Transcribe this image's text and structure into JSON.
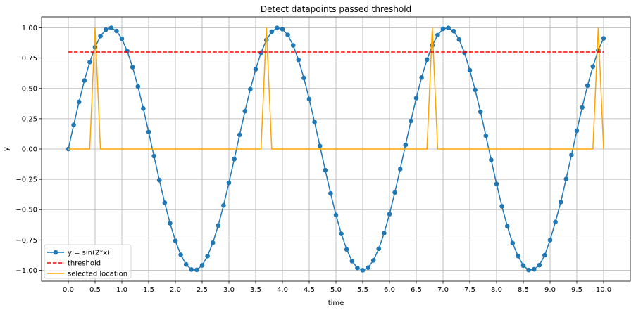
{
  "chart_data": {
    "type": "line",
    "title": "Detect datapoints passed threshold",
    "xlabel": "time",
    "ylabel": "y",
    "xlim": [
      -0.5,
      10.5
    ],
    "ylim": [
      -1.09,
      1.09
    ],
    "grid": true,
    "legend_position": "bottom-left",
    "x_ticks": [
      0.0,
      0.5,
      1.0,
      1.5,
      2.0,
      2.5,
      3.0,
      3.5,
      4.0,
      4.5,
      5.0,
      5.5,
      6.0,
      6.5,
      7.0,
      7.5,
      8.0,
      8.5,
      9.0,
      9.5,
      10.0
    ],
    "x_tick_labels": [
      "0.0",
      "0.5",
      "1.0",
      "1.5",
      "2.0",
      "2.5",
      "3.0",
      "3.5",
      "4.0",
      "4.5",
      "5.0",
      "5.5",
      "6.0",
      "6.5",
      "7.0",
      "7.5",
      "8.0",
      "8.5",
      "9.0",
      "9.5",
      "10.0"
    ],
    "y_ticks": [
      -1.0,
      -0.75,
      -0.5,
      -0.25,
      0.0,
      0.25,
      0.5,
      0.75,
      1.0
    ],
    "y_tick_labels": [
      "−1.00",
      "−0.75",
      "−0.50",
      "−0.25",
      "0.00",
      "0.25",
      "0.50",
      "0.75",
      "1.00"
    ],
    "series": [
      {
        "name": "y = sin(2*x)",
        "style": "line-marker",
        "color": "#1f77b4",
        "x": [
          0.0,
          0.1,
          0.2,
          0.3,
          0.4,
          0.5,
          0.6,
          0.7,
          0.8,
          0.9,
          1.0,
          1.1,
          1.2,
          1.3,
          1.4,
          1.5,
          1.6,
          1.7,
          1.8,
          1.9,
          2.0,
          2.1,
          2.2,
          2.3,
          2.4,
          2.5,
          2.6,
          2.7,
          2.8,
          2.9,
          3.0,
          3.1,
          3.2,
          3.3,
          3.4,
          3.5,
          3.6,
          3.7,
          3.8,
          3.9,
          4.0,
          4.1,
          4.2,
          4.3,
          4.4,
          4.5,
          4.6,
          4.7,
          4.8,
          4.9,
          5.0,
          5.1,
          5.2,
          5.3,
          5.4,
          5.5,
          5.6,
          5.7,
          5.8,
          5.9,
          6.0,
          6.1,
          6.2,
          6.3,
          6.4,
          6.5,
          6.6,
          6.7,
          6.8,
          6.9,
          7.0,
          7.1,
          7.2,
          7.3,
          7.4,
          7.5,
          7.6,
          7.7,
          7.8,
          7.9,
          8.0,
          8.1,
          8.2,
          8.3,
          8.4,
          8.5,
          8.6,
          8.7,
          8.8,
          8.9,
          9.0,
          9.1,
          9.2,
          9.3,
          9.4,
          9.5,
          9.6,
          9.7,
          9.8,
          9.9,
          10.0
        ],
        "y": [
          0.0,
          0.199,
          0.389,
          0.565,
          0.717,
          0.841,
          0.932,
          0.985,
          1.0,
          0.974,
          0.909,
          0.808,
          0.675,
          0.516,
          0.335,
          0.141,
          -0.058,
          -0.256,
          -0.443,
          -0.612,
          -0.757,
          -0.872,
          -0.952,
          -0.994,
          -0.996,
          -0.959,
          -0.883,
          -0.773,
          -0.631,
          -0.465,
          -0.279,
          -0.083,
          0.117,
          0.312,
          0.494,
          0.657,
          0.794,
          0.899,
          0.968,
          0.999,
          0.989,
          0.941,
          0.855,
          0.735,
          0.586,
          0.412,
          0.223,
          0.025,
          -0.174,
          -0.366,
          -0.544,
          -0.699,
          -0.828,
          -0.924,
          -0.981,
          -1.0,
          -0.978,
          -0.918,
          -0.822,
          -0.694,
          -0.537,
          -0.358,
          -0.165,
          0.034,
          0.232,
          0.42,
          0.59,
          0.737,
          0.855,
          0.94,
          0.991,
          0.999,
          0.973,
          0.903,
          0.795,
          0.65,
          0.488,
          0.307,
          0.109,
          -0.09,
          -0.288,
          -0.472,
          -0.636,
          -0.776,
          -0.882,
          -0.961,
          -0.998,
          -0.992,
          -0.958,
          -0.876,
          -0.751,
          -0.601,
          -0.437,
          -0.247,
          -0.049,
          0.151,
          0.343,
          0.523,
          0.68,
          0.814,
          0.913
        ]
      },
      {
        "name": "threshold",
        "style": "dashed",
        "color": "#ff0000",
        "x": [
          0.0,
          10.0
        ],
        "y": [
          0.8,
          0.8
        ]
      },
      {
        "name": "selected location",
        "style": "line",
        "color": "#ffa500",
        "x": [
          0.0,
          0.4,
          0.5,
          0.6,
          3.6,
          3.7,
          3.8,
          6.7,
          6.8,
          6.9,
          9.8,
          9.9,
          10.0
        ],
        "y": [
          0,
          0,
          1,
          0,
          0,
          1,
          0,
          0,
          1,
          0,
          0,
          1,
          0
        ]
      }
    ]
  }
}
